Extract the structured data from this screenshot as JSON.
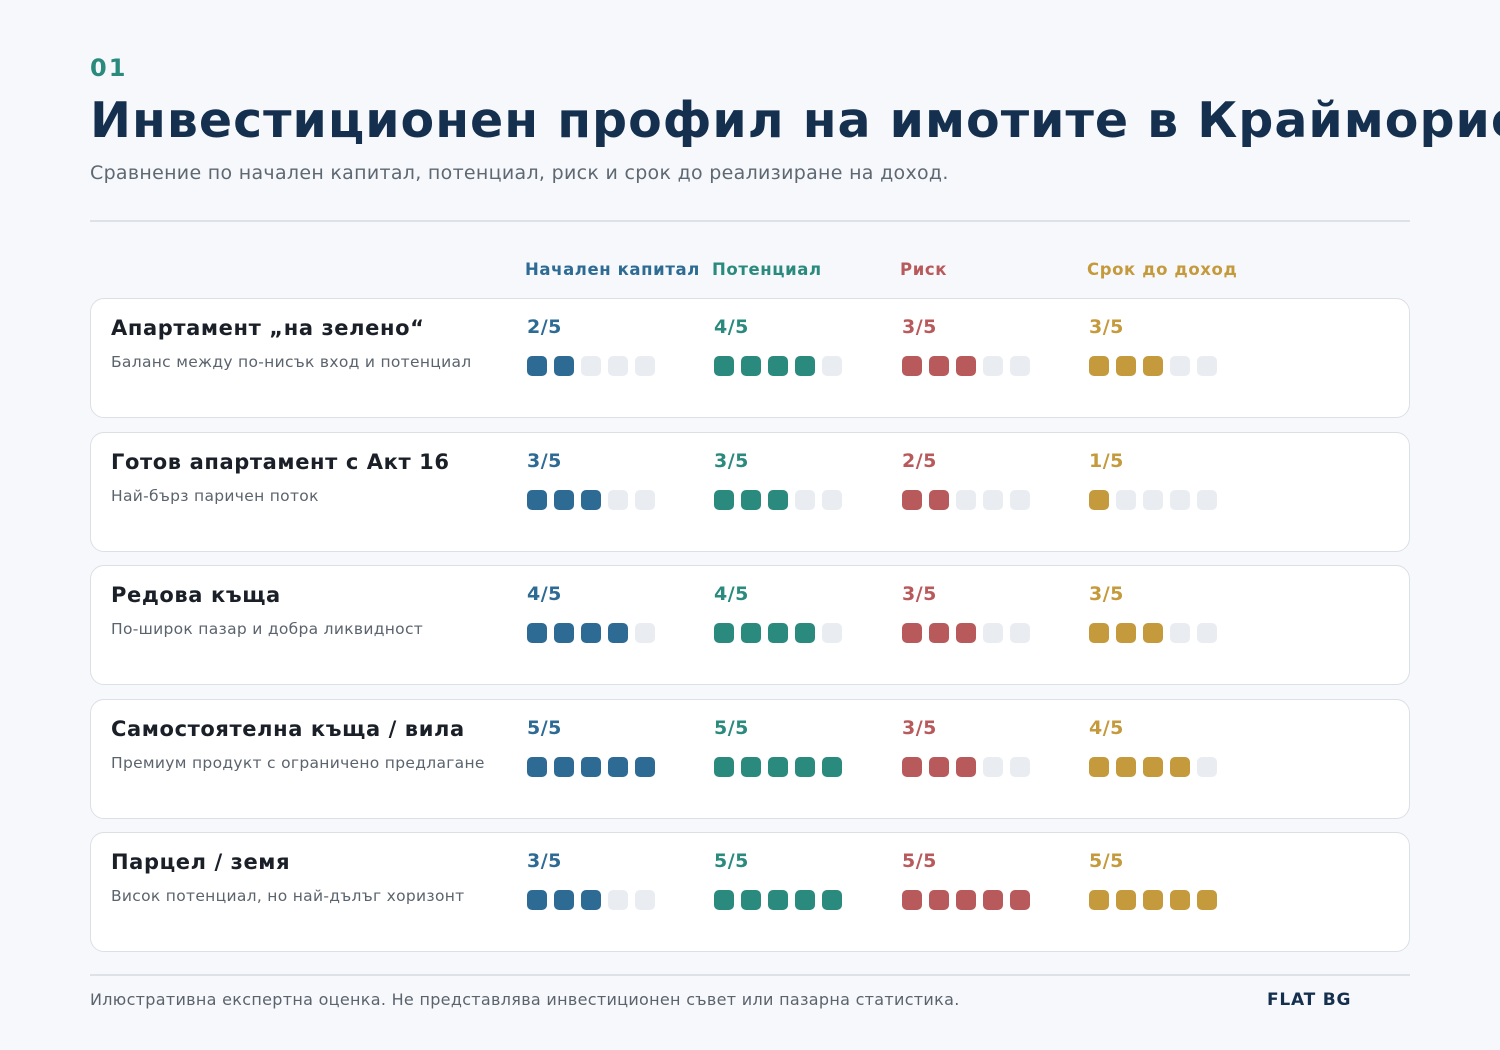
{
  "kicker": "01",
  "title": "Инвестиционен профил на имотите в Крайморие",
  "subtitle": "Сравнение по начален капитал, потенциал, риск и срок до реализиране на доход.",
  "footer_note": "Илюстративна експертна оценка. Не представлява инвестиционен съвет или пазарна статистика.",
  "brand": "FLAT BG",
  "colors": {
    "capital": "#2d6b94",
    "potential": "#2a8a7d",
    "risk": "#b85a5c",
    "term": "#c49a3c",
    "empty": "#e9edf2"
  },
  "chart_data": {
    "type": "table",
    "scale_max": 5,
    "columns": [
      {
        "key": "capital",
        "label": "Начален капитал"
      },
      {
        "key": "potential",
        "label": "Потенциал"
      },
      {
        "key": "risk",
        "label": "Риск"
      },
      {
        "key": "term",
        "label": "Срок до доход"
      }
    ],
    "rows": [
      {
        "name": "Апартамент „на зелено“",
        "description": "Баланс между по-нисък вход и потенциал",
        "values": {
          "capital": 2,
          "potential": 4,
          "risk": 3,
          "term": 3
        },
        "labels": {
          "capital": "2/5",
          "potential": "4/5",
          "risk": "3/5",
          "term": "3/5"
        }
      },
      {
        "name": "Готов апартамент с Акт 16",
        "description": "Най-бърз паричен поток",
        "values": {
          "capital": 3,
          "potential": 3,
          "risk": 2,
          "term": 1
        },
        "labels": {
          "capital": "3/5",
          "potential": "3/5",
          "risk": "2/5",
          "term": "1/5"
        }
      },
      {
        "name": "Редова къща",
        "description": "По-широк пазар и добра ликвидност",
        "values": {
          "capital": 4,
          "potential": 4,
          "risk": 3,
          "term": 3
        },
        "labels": {
          "capital": "4/5",
          "potential": "4/5",
          "risk": "3/5",
          "term": "3/5"
        }
      },
      {
        "name": "Самостоятелна къща / вила",
        "description": "Премиум продукт с ограничено предлагане",
        "values": {
          "capital": 5,
          "potential": 5,
          "risk": 3,
          "term": 4
        },
        "labels": {
          "capital": "5/5",
          "potential": "5/5",
          "risk": "3/5",
          "term": "4/5"
        }
      },
      {
        "name": "Парцел / земя",
        "description": "Висок потенциал, но най-дълъг хоризонт",
        "values": {
          "capital": 3,
          "potential": 5,
          "risk": 5,
          "term": 5
        },
        "labels": {
          "capital": "3/5",
          "potential": "5/5",
          "risk": "5/5",
          "term": "5/5"
        }
      }
    ]
  }
}
